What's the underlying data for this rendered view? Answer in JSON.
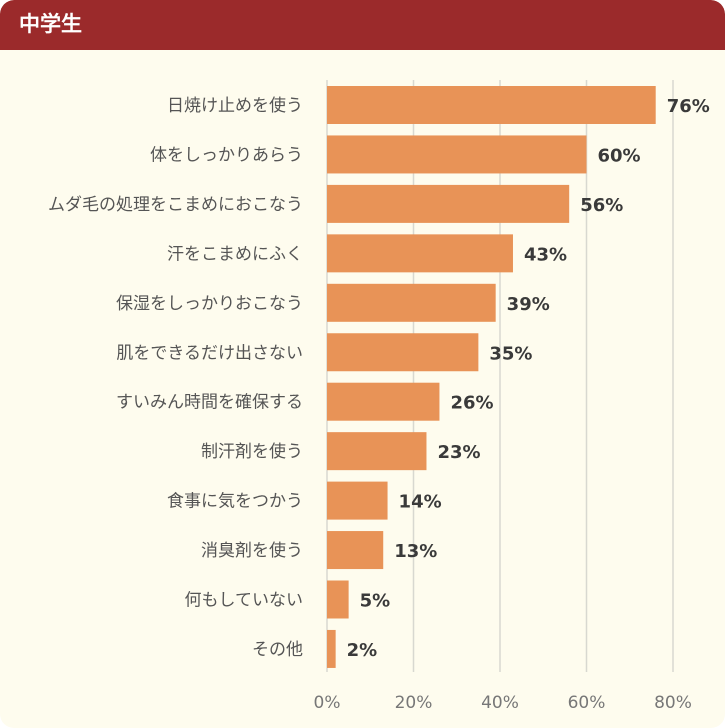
{
  "header": {
    "title": "中学生"
  },
  "colors": {
    "header_bg": "#9b2a2b",
    "card_bg": "#fefcee",
    "bar": "#e89357",
    "grid": "#d8d8d0"
  },
  "chart_data": {
    "type": "bar",
    "orientation": "horizontal",
    "categories": [
      "日焼け止めを使う",
      "体をしっかりあらう",
      "ムダ毛の処理をこまめにおこなう",
      "汗をこまめにふく",
      "保湿をしっかりおこなう",
      "肌をできるだけ出さない",
      "すいみん時間を確保する",
      "制汗剤を使う",
      "食事に気をつかう",
      "消臭剤を使う",
      "何もしていない",
      "その他"
    ],
    "values": [
      76,
      60,
      56,
      43,
      39,
      35,
      26,
      23,
      14,
      13,
      5,
      2
    ],
    "value_labels": [
      "76%",
      "60%",
      "56%",
      "43%",
      "39%",
      "35%",
      "26%",
      "23%",
      "14%",
      "13%",
      "5%",
      "2%"
    ],
    "x_ticks": [
      0,
      20,
      40,
      60,
      80
    ],
    "x_tick_labels": [
      "0%",
      "20%",
      "40%",
      "60%",
      "80%"
    ],
    "xlim": [
      0,
      80
    ],
    "grid": true,
    "title": "",
    "xlabel": "",
    "ylabel": ""
  }
}
